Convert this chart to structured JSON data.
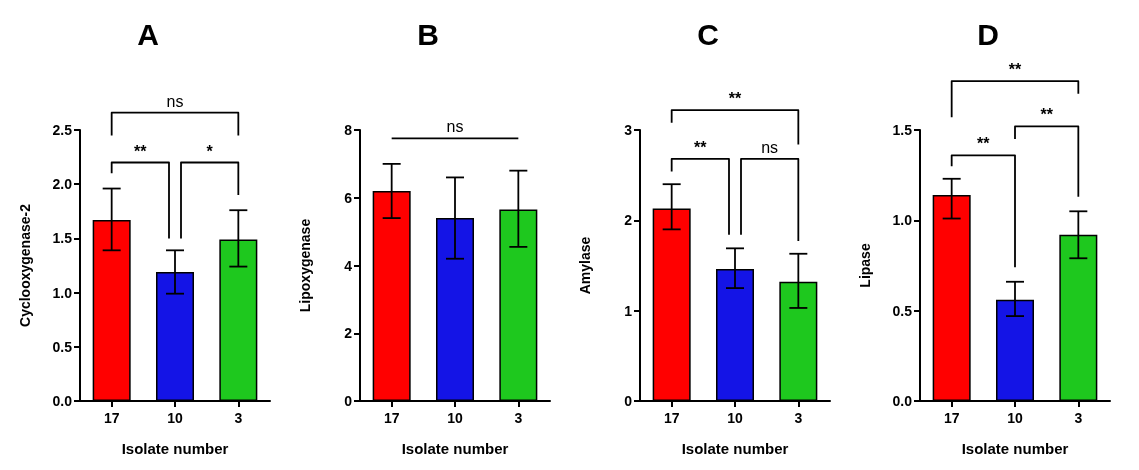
{
  "chart_data": [
    {
      "type": "bar",
      "title": "A",
      "xlabel": "Isolate number",
      "ylabel": "Cyclooxygenase-2",
      "categories": [
        "17",
        "10",
        "3"
      ],
      "values": [
        1.67,
        1.19,
        1.49
      ],
      "errors": [
        [
          1.39,
          1.96
        ],
        [
          0.99,
          1.39
        ],
        [
          1.24,
          1.76
        ]
      ],
      "colors": [
        "#ff0000",
        "#1414e6",
        "#1ec81e"
      ],
      "ylim": [
        0,
        2.5
      ],
      "yticks": [
        {
          "value": 0,
          "label": "0.0"
        },
        {
          "value": 0.5,
          "label": "0.5"
        },
        {
          "value": 1,
          "label": "1.0"
        },
        {
          "value": 1.5,
          "label": "1.5"
        },
        {
          "value": 2,
          "label": "2.0"
        },
        {
          "value": 2.5,
          "label": "2.5"
        }
      ],
      "grid": false,
      "annotations": [
        "**",
        "*",
        "ns"
      ]
    },
    {
      "type": "bar",
      "title": "B",
      "xlabel": "Isolate number",
      "ylabel": "Lipoxygenase",
      "categories": [
        "17",
        "10",
        "3"
      ],
      "values": [
        6.2,
        5.4,
        5.65
      ],
      "errors": [
        [
          5.4,
          7.0
        ],
        [
          4.2,
          6.6
        ],
        [
          4.55,
          6.8
        ]
      ],
      "colors": [
        "#ff0000",
        "#1414e6",
        "#1ec81e"
      ],
      "ylim": [
        0,
        8
      ],
      "yticks": [
        0,
        2,
        4,
        6,
        8
      ],
      "grid": false,
      "annotations": [
        "ns"
      ]
    },
    {
      "type": "bar",
      "title": "C",
      "xlabel": "Isolate number",
      "ylabel": "Amylase",
      "categories": [
        "17",
        "10",
        "3"
      ],
      "values": [
        2.13,
        1.46,
        1.32
      ],
      "errors": [
        [
          1.9,
          2.4
        ],
        [
          1.25,
          1.69
        ],
        [
          1.03,
          1.63
        ]
      ],
      "colors": [
        "#ff0000",
        "#1414e6",
        "#1ec81e"
      ],
      "ylim": [
        0,
        3
      ],
      "yticks": [
        0,
        1,
        2,
        3
      ],
      "grid": false,
      "annotations": [
        "**",
        "ns",
        "**"
      ]
    },
    {
      "type": "bar",
      "title": "D",
      "xlabel": "Isolate number",
      "ylabel": "Lipase",
      "categories": [
        "17",
        "10",
        "3"
      ],
      "values": [
        1.14,
        0.56,
        0.92
      ],
      "errors": [
        [
          1.01,
          1.23
        ],
        [
          0.47,
          0.66
        ],
        [
          0.79,
          1.05
        ]
      ],
      "colors": [
        "#ff0000",
        "#1414e6",
        "#1ec81e"
      ],
      "ylim": [
        0,
        1.5
      ],
      "yticks": [
        {
          "value": 0,
          "label": "0.0"
        },
        {
          "value": 0.5,
          "label": "0.5"
        },
        {
          "value": 1,
          "label": "1.0"
        },
        {
          "value": 1.5,
          "label": "1.5"
        }
      ],
      "grid": false,
      "annotations": [
        "**",
        "**",
        "**"
      ]
    }
  ]
}
